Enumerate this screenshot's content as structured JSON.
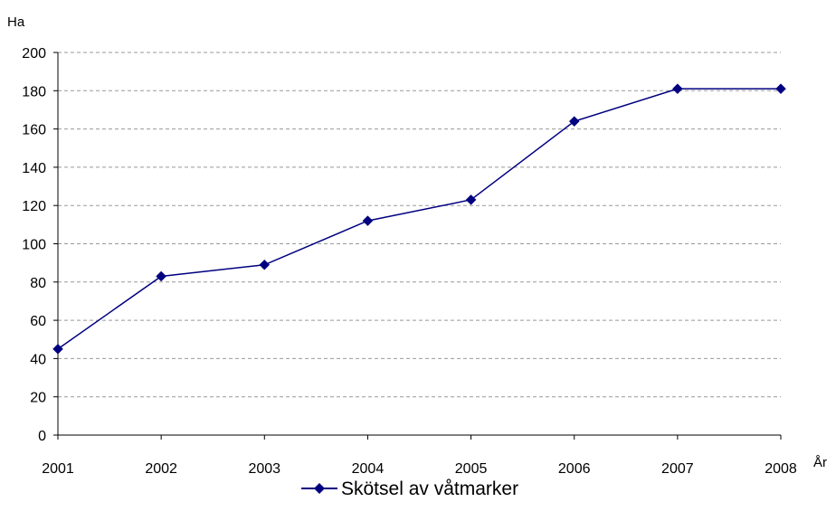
{
  "chart_data": {
    "type": "line",
    "title": "",
    "xlabel": "År",
    "ylabel": "Ha",
    "x": [
      "2001",
      "2002",
      "2003",
      "2004",
      "2005",
      "2006",
      "2007",
      "2008"
    ],
    "ylim": [
      0,
      200
    ],
    "yticks": [
      "0",
      "20",
      "40",
      "60",
      "80",
      "100",
      "120",
      "140",
      "160",
      "180",
      "200"
    ],
    "grid": true,
    "legend_position": "bottom-center",
    "series": [
      {
        "name": "Skötsel av våtmarker",
        "color": "#000080",
        "marker": "diamond",
        "values": [
          45,
          83,
          89,
          112,
          123,
          164,
          181,
          181
        ]
      }
    ]
  }
}
